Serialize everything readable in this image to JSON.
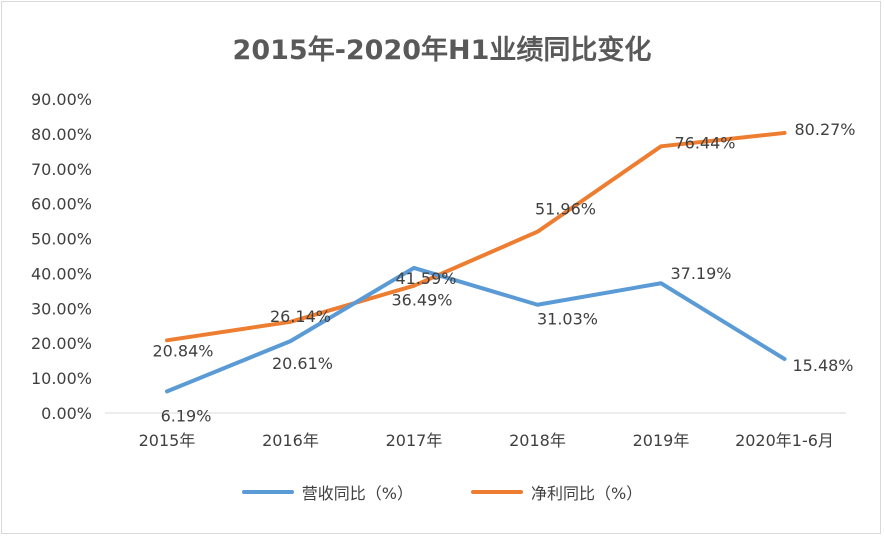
{
  "chart_data": {
    "type": "line",
    "title": "2015年-2020年H1业绩同比变化",
    "categories": [
      "2015年",
      "2016年",
      "2017年",
      "2018年",
      "2019年",
      "2020年1-6月"
    ],
    "y_ticks": [
      "0.00%",
      "10.00%",
      "20.00%",
      "30.00%",
      "40.00%",
      "50.00%",
      "60.00%",
      "70.00%",
      "80.00%",
      "90.00%"
    ],
    "ylim": [
      0,
      90
    ],
    "grid": false,
    "legend_position": "bottom",
    "series": [
      {
        "name": "营收同比（%）",
        "color": "#5b9bd5",
        "values": [
          6.19,
          20.61,
          41.59,
          31.03,
          37.19,
          15.48
        ],
        "labels": [
          "6.19%",
          "20.61%",
          "41.59%",
          "31.03%",
          "37.19%",
          "15.48%"
        ]
      },
      {
        "name": "净利同比（%）",
        "color": "#ed7d31",
        "values": [
          20.84,
          26.14,
          36.49,
          51.96,
          76.44,
          80.27
        ],
        "labels": [
          "20.84%",
          "26.14%",
          "36.49%",
          "51.96%",
          "76.44%",
          "80.27%"
        ]
      }
    ]
  }
}
